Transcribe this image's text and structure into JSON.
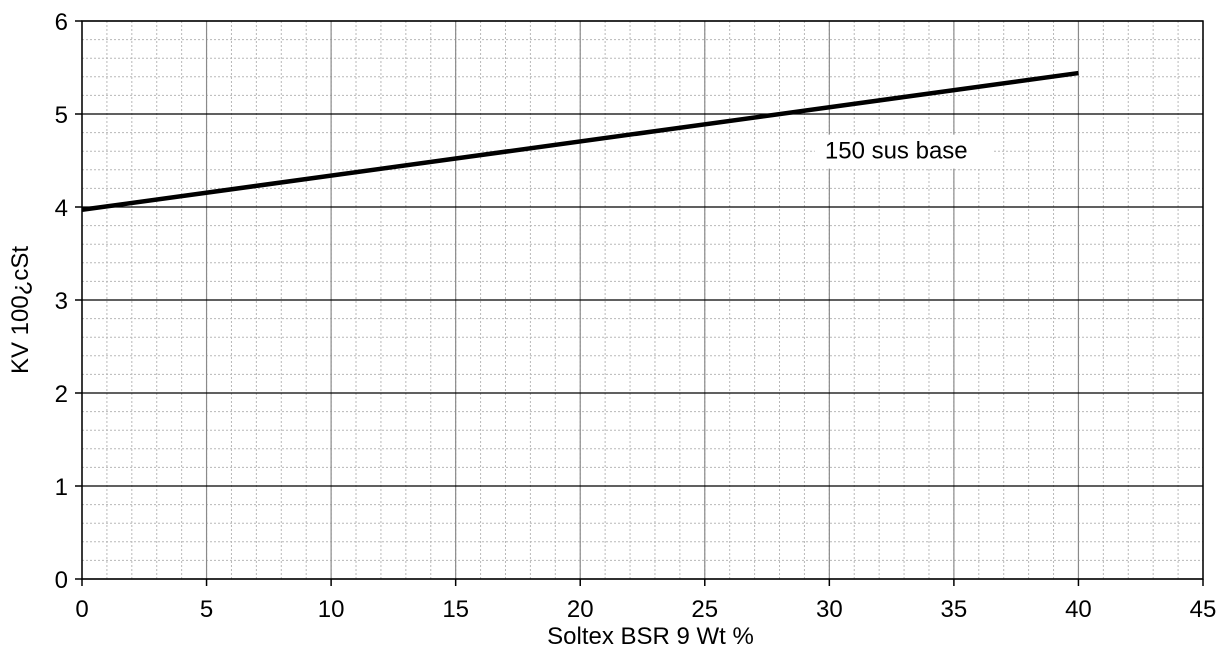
{
  "chart_data": {
    "type": "line",
    "title": "",
    "xlabel": "Soltex BSR 9 Wt %",
    "ylabel": "KV 100¿cSt",
    "xlim": [
      0,
      45
    ],
    "ylim": [
      0,
      6
    ],
    "x_ticks": [
      0,
      5,
      10,
      15,
      20,
      25,
      30,
      35,
      40,
      45
    ],
    "y_ticks": [
      0,
      1,
      2,
      3,
      4,
      5,
      6
    ],
    "x_tick_labels": [
      "0",
      "5",
      "10",
      "15",
      "20",
      "25",
      "30",
      "35",
      "40",
      "45"
    ],
    "y_tick_labels": [
      "0",
      "1",
      "2",
      "3",
      "4",
      "5",
      "6"
    ],
    "minor_x_step": 1,
    "minor_y_step": 0.2,
    "grid": true,
    "series": [
      {
        "name": "150 sus base",
        "x": [
          0,
          40
        ],
        "y": [
          3.97,
          5.44
        ],
        "color": "#000000"
      }
    ],
    "annotations": [
      {
        "text": "150 sus base",
        "x": 29.5,
        "y": 4.52
      }
    ]
  }
}
